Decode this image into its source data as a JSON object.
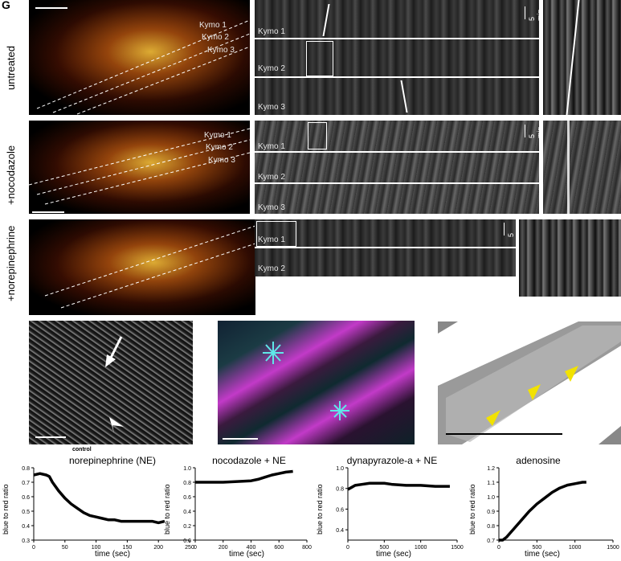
{
  "panel_letter": "G",
  "rows": [
    {
      "label": "untreated",
      "kymo_labels": [
        "Kymo 1",
        "Kymo 2",
        "Kymo 3"
      ],
      "scale_label": "5 min"
    },
    {
      "label": "+nocodazole",
      "kymo_labels": [
        "Kymo 1",
        "Kymo 2",
        "Kymo 3"
      ],
      "scale_label": "5 min"
    },
    {
      "label": "+norepinephrine",
      "kymo_labels": [
        "Kymo 1",
        "Kymo 2"
      ],
      "scale_label": "5 min"
    }
  ],
  "control_label": "control",
  "colors": {
    "flame": "#e07a1a",
    "magenta": "#c23ac8",
    "cyan": "#5fe8e8",
    "arrow_yellow": "#f2e200"
  },
  "chart_data": [
    {
      "type": "line",
      "title": "norepinephrine (NE)",
      "xlabel": "time (sec)",
      "ylabel": "blue to red ratio",
      "xlim": [
        0,
        250
      ],
      "ylim": [
        0.3,
        0.8
      ],
      "xticks": [
        0,
        50,
        100,
        150,
        200,
        250
      ],
      "yticks": [
        0.3,
        0.4,
        0.5,
        0.6,
        0.7,
        0.8
      ],
      "x": [
        0,
        10,
        20,
        25,
        30,
        40,
        50,
        60,
        70,
        80,
        90,
        100,
        110,
        120,
        130,
        140,
        150,
        160,
        170,
        180,
        190,
        200,
        210
      ],
      "y": [
        0.75,
        0.76,
        0.75,
        0.74,
        0.7,
        0.64,
        0.59,
        0.55,
        0.52,
        0.49,
        0.47,
        0.46,
        0.45,
        0.44,
        0.44,
        0.43,
        0.43,
        0.43,
        0.43,
        0.43,
        0.43,
        0.42,
        0.43
      ]
    },
    {
      "type": "line",
      "title": "nocodazole + NE",
      "xlabel": "time (sec)",
      "ylabel": "blue to red ratio",
      "xlim": [
        0,
        800
      ],
      "ylim": [
        0.0,
        1.0
      ],
      "xticks": [
        0,
        200,
        400,
        600,
        800
      ],
      "yticks": [
        0.0,
        0.2,
        0.4,
        0.6,
        0.8,
        1.0
      ],
      "x": [
        0,
        100,
        200,
        300,
        400,
        450,
        500,
        550,
        600,
        650,
        700
      ],
      "y": [
        0.8,
        0.8,
        0.8,
        0.81,
        0.82,
        0.84,
        0.87,
        0.9,
        0.92,
        0.94,
        0.95
      ]
    },
    {
      "type": "line",
      "title": "dynapyrazole-a + NE",
      "xlabel": "time (sec)",
      "ylabel": "blue to red ratio",
      "xlim": [
        0,
        1500
      ],
      "ylim": [
        0.3,
        1.0
      ],
      "xticks": [
        0,
        500,
        1000,
        1500
      ],
      "yticks": [
        0.4,
        0.6,
        0.8,
        1.0
      ],
      "x": [
        0,
        50,
        100,
        200,
        300,
        400,
        500,
        600,
        800,
        1000,
        1200,
        1400
      ],
      "y": [
        0.79,
        0.81,
        0.83,
        0.84,
        0.85,
        0.85,
        0.85,
        0.84,
        0.83,
        0.83,
        0.82,
        0.82
      ]
    },
    {
      "type": "line",
      "title": "adenosine",
      "xlabel": "time (sec)",
      "ylabel": "blue to red ratio",
      "xlim": [
        0,
        1500
      ],
      "ylim": [
        0.7,
        1.2
      ],
      "xticks": [
        0,
        500,
        1000,
        1500
      ],
      "yticks": [
        0.7,
        0.8,
        0.9,
        1.0,
        1.1,
        1.2
      ],
      "x": [
        0,
        50,
        100,
        150,
        200,
        300,
        400,
        500,
        600,
        700,
        800,
        900,
        1000,
        1100,
        1150
      ],
      "y": [
        0.7,
        0.7,
        0.72,
        0.75,
        0.78,
        0.84,
        0.9,
        0.95,
        0.99,
        1.03,
        1.06,
        1.08,
        1.09,
        1.1,
        1.1
      ]
    }
  ]
}
